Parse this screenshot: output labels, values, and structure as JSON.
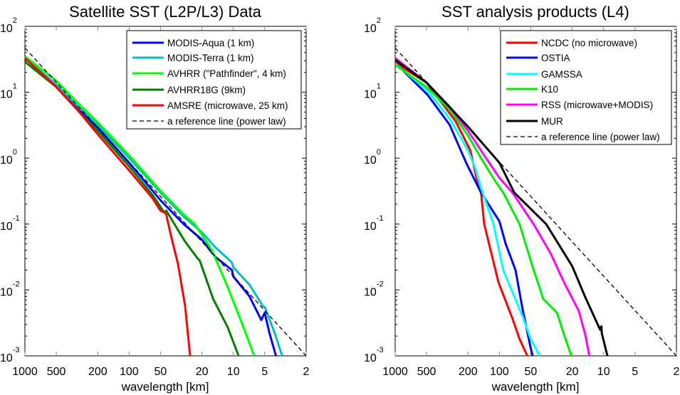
{
  "chart_data": [
    {
      "type": "line",
      "title": "Satellite SST (L2P/L3) Data",
      "xlabel": "wavelength [km]",
      "ylabel": "",
      "xscale": "log",
      "yscale": "log",
      "x_reversed": true,
      "xlim": [
        1000,
        2
      ],
      "ylim": [
        0.001,
        100
      ],
      "xticks": [
        "1000",
        "500",
        "200",
        "100",
        "50",
        "20",
        "10",
        "5",
        "2"
      ],
      "yticks": [
        {
          "base": "10",
          "exp": "2"
        },
        {
          "base": "10",
          "exp": "1"
        },
        {
          "base": "10",
          "exp": "0"
        },
        {
          "base": "10",
          "exp": "-1"
        },
        {
          "base": "10",
          "exp": "-2"
        },
        {
          "base": "10",
          "exp": "-3"
        }
      ],
      "grid": false,
      "legend_position": "top-right",
      "series": [
        {
          "name": "MODIS-Aqua (1 km)",
          "color": "#0000ff",
          "x": [
            1000,
            500,
            300,
            200,
            100,
            50,
            30,
            20,
            15,
            10.3,
            10,
            7,
            5.4,
            5,
            4.5,
            3.9
          ],
          "y": [
            33,
            13,
            5.5,
            2.9,
            0.85,
            0.23,
            0.1,
            0.058,
            0.032,
            0.02,
            0.016,
            0.008,
            0.0035,
            0.0045,
            0.0022,
            0.001
          ]
        },
        {
          "name": "MODIS-Terra (1 km)",
          "color": "#00bfbf",
          "x": [
            1000,
            500,
            300,
            200,
            100,
            50,
            30,
            20,
            15,
            10.3,
            10,
            7,
            5.2,
            5,
            4,
            3.4
          ],
          "y": [
            33,
            13,
            5.8,
            3.2,
            1.0,
            0.3,
            0.13,
            0.075,
            0.045,
            0.026,
            0.022,
            0.012,
            0.0057,
            0.0055,
            0.0022,
            0.001
          ]
        },
        {
          "name": "AVHRR (\"Pathfinder\", 4 km)",
          "color": "#00ff00",
          "x": [
            1000,
            500,
            300,
            200,
            100,
            50,
            30,
            23.5,
            16.3,
            11.3,
            8.2,
            6.3
          ],
          "y": [
            35,
            15,
            6.5,
            3.5,
            1.1,
            0.32,
            0.14,
            0.1,
            0.042,
            0.011,
            0.003,
            0.001
          ]
        },
        {
          "name": "AVHRR18G (9km)",
          "color": "#007f00",
          "x": [
            1000,
            500,
            300,
            200,
            100,
            60,
            46,
            44,
            29,
            22,
            21,
            15.6,
            11.3,
            8.9
          ],
          "y": [
            29,
            12,
            5,
            2.6,
            0.75,
            0.28,
            0.15,
            0.16,
            0.054,
            0.03,
            0.028,
            0.0073,
            0.0027,
            0.001
          ]
        },
        {
          "name": "AMSRE (microwave, 25 km)",
          "color": "#ff0000",
          "x": [
            1000,
            500,
            300,
            200,
            100,
            60,
            50,
            46,
            44,
            40,
            34,
            29,
            26
          ],
          "y": [
            33,
            12,
            5,
            2.3,
            0.65,
            0.25,
            0.16,
            0.15,
            0.14,
            0.07,
            0.025,
            0.0057,
            0.001
          ]
        }
      ],
      "reference_line": {
        "name": "a reference line (power law)",
        "color": "#000000",
        "x": [
          1000,
          2
        ],
        "y": [
          47,
          0.001
        ]
      }
    },
    {
      "type": "line",
      "title": "SST analysis products (L4)",
      "xlabel": "wavelength [km]",
      "ylabel": "",
      "xscale": "log",
      "yscale": "log",
      "x_reversed": true,
      "xlim": [
        1000,
        2
      ],
      "ylim": [
        0.001,
        100
      ],
      "xticks": [
        "1000",
        "500",
        "200",
        "100",
        "50",
        "20",
        "10",
        "5",
        "2"
      ],
      "yticks": [
        {
          "base": "10",
          "exp": "2"
        },
        {
          "base": "10",
          "exp": "1"
        },
        {
          "base": "10",
          "exp": "0"
        },
        {
          "base": "10",
          "exp": "-1"
        },
        {
          "base": "10",
          "exp": "-2"
        },
        {
          "base": "10",
          "exp": "-3"
        }
      ],
      "grid": false,
      "legend_position": "top-right",
      "series": [
        {
          "name": "NCDC (no microwave)",
          "color": "#ff0000",
          "x": [
            1000,
            500,
            262,
            190,
            160,
            150,
            140,
            102,
            75,
            64,
            54
          ],
          "y": [
            28,
            14,
            3.6,
            1.3,
            0.39,
            0.3,
            0.1,
            0.013,
            0.0037,
            0.0018,
            0.001
          ]
        },
        {
          "name": "OSTIA",
          "color": "#0000ff",
          "x": [
            930,
            490,
            300,
            207,
            150,
            100,
            87,
            70,
            60,
            50,
            48
          ],
          "y": [
            25,
            9.2,
            3.2,
            0.83,
            0.3,
            0.11,
            0.05,
            0.02,
            0.0052,
            0.0013,
            0.001
          ]
        },
        {
          "name": "GAMSSA",
          "color": "#00ffff",
          "x": [
            1000,
            500,
            300,
            200,
            170,
            150,
            114,
            92,
            60,
            50,
            41
          ],
          "y": [
            27,
            11,
            4,
            1.3,
            0.7,
            0.35,
            0.1,
            0.02,
            0.004,
            0.0018,
            0.001
          ]
        },
        {
          "name": "K10",
          "color": "#00ee00",
          "x": [
            1000,
            500,
            300,
            200,
            150,
            110,
            92,
            64,
            49,
            38,
            28,
            24,
            20.4
          ],
          "y": [
            26,
            12,
            5.5,
            2.2,
            1.0,
            0.45,
            0.3,
            0.1,
            0.025,
            0.0073,
            0.0045,
            0.0021,
            0.001
          ]
        },
        {
          "name": "RSS (microwave+MODIS)",
          "color": "#ff00ff",
          "x": [
            1000,
            500,
            300,
            200,
            150,
            100,
            75,
            47,
            32,
            24,
            17.3,
            15,
            13.7
          ],
          "y": [
            33,
            14,
            6,
            2.6,
            1.3,
            0.5,
            0.3,
            0.1,
            0.035,
            0.013,
            0.0048,
            0.0021,
            0.001
          ]
        },
        {
          "name": "MUR",
          "color": "#000000",
          "x": [
            1000,
            500,
            200,
            100,
            72,
            35.6,
            20,
            15,
            10.8,
            10.5,
            10.4,
            9.2
          ],
          "y": [
            31,
            14,
            3,
            0.85,
            0.3,
            0.1,
            0.023,
            0.0078,
            0.0025,
            0.0028,
            0.0022,
            0.001
          ]
        }
      ],
      "reference_line": {
        "name": "a reference line (power law)",
        "color": "#000000",
        "x": [
          1000,
          2
        ],
        "y": [
          47,
          0.001
        ]
      }
    }
  ]
}
